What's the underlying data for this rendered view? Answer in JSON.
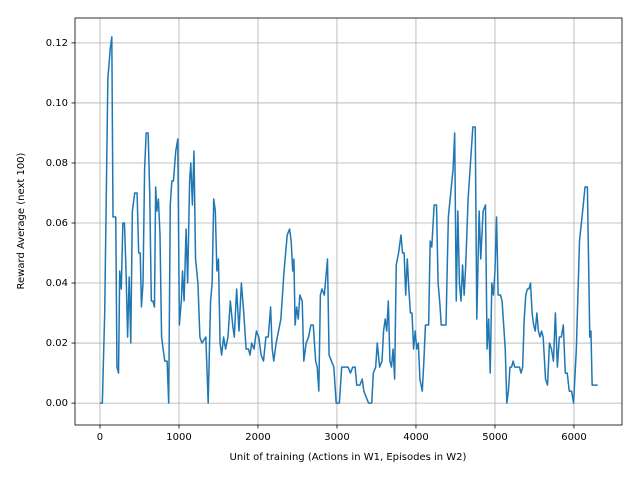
{
  "chart_data": {
    "type": "line",
    "x_label": "Unit of training (Actions in W1, Episodes in W2)",
    "y_label": "Reward Average (next 100)",
    "color": "#1f77b4",
    "grid": true,
    "xlim": [
      -316,
      6608
    ],
    "ylim": [
      -0.0073,
      0.1283
    ],
    "xticks": [
      0,
      1000,
      2000,
      3000,
      4000,
      5000,
      6000
    ],
    "yticks": [
      {
        "value": 0,
        "label": "0.00"
      },
      {
        "value": 0.02,
        "label": "0.02"
      },
      {
        "value": 0.04,
        "label": "0.04"
      },
      {
        "value": 0.06,
        "label": "0.06"
      },
      {
        "value": 0.08,
        "label": "0.08"
      },
      {
        "value": 0.1,
        "label": "0.10"
      },
      {
        "value": 0.12,
        "label": "0.12"
      }
    ],
    "x": [
      0,
      30,
      60,
      100,
      130,
      150,
      165,
      200,
      215,
      235,
      250,
      270,
      290,
      310,
      330,
      350,
      370,
      390,
      410,
      440,
      470,
      490,
      510,
      525,
      545,
      565,
      585,
      610,
      630,
      650,
      670,
      690,
      705,
      720,
      740,
      760,
      780,
      800,
      820,
      850,
      870,
      890,
      910,
      930,
      960,
      985,
      1005,
      1030,
      1045,
      1065,
      1090,
      1110,
      1135,
      1150,
      1170,
      1190,
      1210,
      1240,
      1265,
      1290,
      1340,
      1370,
      1400,
      1420,
      1440,
      1460,
      1480,
      1500,
      1520,
      1540,
      1565,
      1590,
      1620,
      1650,
      1680,
      1700,
      1730,
      1760,
      1790,
      1820,
      1850,
      1880,
      1900,
      1920,
      1950,
      1980,
      2010,
      2040,
      2070,
      2100,
      2130,
      2160,
      2180,
      2200,
      2230,
      2260,
      2290,
      2330,
      2370,
      2400,
      2420,
      2440,
      2455,
      2470,
      2490,
      2510,
      2530,
      2560,
      2580,
      2610,
      2640,
      2670,
      2700,
      2730,
      2750,
      2770,
      2790,
      2810,
      2840,
      2880,
      2900,
      2930,
      2960,
      2990,
      3030,
      3060,
      3100,
      3140,
      3170,
      3200,
      3230,
      3250,
      3290,
      3320,
      3340,
      3370,
      3400,
      3440,
      3460,
      3490,
      3510,
      3540,
      3570,
      3590,
      3610,
      3630,
      3650,
      3670,
      3690,
      3710,
      3730,
      3750,
      3780,
      3810,
      3830,
      3850,
      3870,
      3890,
      3910,
      3930,
      3950,
      3970,
      3990,
      4010,
      4030,
      4050,
      4080,
      4100,
      4120,
      4160,
      4180,
      4200,
      4230,
      4260,
      4280,
      4300,
      4320,
      4350,
      4380,
      4410,
      4440,
      4470,
      4490,
      4510,
      4530,
      4550,
      4570,
      4590,
      4610,
      4630,
      4660,
      4690,
      4720,
      4750,
      4770,
      4800,
      4820,
      4850,
      4880,
      4900,
      4920,
      4940,
      4960,
      4980,
      5000,
      5020,
      5040,
      5070,
      5090,
      5110,
      5130,
      5150,
      5170,
      5190,
      5210,
      5230,
      5250,
      5280,
      5310,
      5330,
      5350,
      5370,
      5390,
      5410,
      5430,
      5450,
      5470,
      5490,
      5510,
      5530,
      5550,
      5570,
      5590,
      5610,
      5640,
      5665,
      5690,
      5715,
      5740,
      5765,
      5790,
      5815,
      5840,
      5865,
      5890,
      5915,
      5940,
      5970,
      5995,
      6030,
      6070,
      6110,
      6140,
      6170,
      6200,
      6215,
      6230,
      6270,
      6300
    ],
    "values": [
      0,
      0,
      0.03,
      0.108,
      0.118,
      0.122,
      0.062,
      0.062,
      0.012,
      0.01,
      0.044,
      0.038,
      0.06,
      0.06,
      0.044,
      0.022,
      0.042,
      0.02,
      0.064,
      0.07,
      0.07,
      0.05,
      0.05,
      0.032,
      0.04,
      0.078,
      0.09,
      0.09,
      0.07,
      0.034,
      0.034,
      0.032,
      0.072,
      0.064,
      0.068,
      0.056,
      0.022,
      0.018,
      0.014,
      0.014,
      0,
      0.066,
      0.074,
      0.074,
      0.084,
      0.088,
      0.026,
      0.034,
      0.044,
      0.034,
      0.058,
      0.04,
      0.074,
      0.08,
      0.066,
      0.084,
      0.048,
      0.04,
      0.022,
      0.02,
      0.022,
      0,
      0.034,
      0.04,
      0.068,
      0.064,
      0.044,
      0.048,
      0.02,
      0.016,
      0.022,
      0.018,
      0.022,
      0.034,
      0.026,
      0.022,
      0.038,
      0.024,
      0.04,
      0.03,
      0.018,
      0.018,
      0.016,
      0.02,
      0.018,
      0.024,
      0.022,
      0.016,
      0.014,
      0.022,
      0.022,
      0.032,
      0.018,
      0.014,
      0.02,
      0.024,
      0.028,
      0.044,
      0.056,
      0.058,
      0.054,
      0.044,
      0.048,
      0.026,
      0.032,
      0.028,
      0.036,
      0.034,
      0.014,
      0.02,
      0.022,
      0.026,
      0.026,
      0.014,
      0.012,
      0.004,
      0.036,
      0.038,
      0.036,
      0.048,
      0.016,
      0.014,
      0.012,
      0,
      0,
      0.012,
      0.012,
      0.012,
      0.01,
      0.012,
      0.012,
      0.006,
      0.006,
      0.008,
      0.004,
      0.002,
      0,
      0,
      0.01,
      0.012,
      0.02,
      0.012,
      0.014,
      0.024,
      0.028,
      0.024,
      0.034,
      0.014,
      0.012,
      0.018,
      0.008,
      0.046,
      0.05,
      0.056,
      0.05,
      0.05,
      0.036,
      0.048,
      0.038,
      0.03,
      0.03,
      0.018,
      0.024,
      0.018,
      0.02,
      0.008,
      0.004,
      0.014,
      0.026,
      0.026,
      0.054,
      0.052,
      0.066,
      0.066,
      0.04,
      0.034,
      0.026,
      0.026,
      0.026,
      0.062,
      0.07,
      0.078,
      0.09,
      0.034,
      0.064,
      0.04,
      0.034,
      0.046,
      0.036,
      0.046,
      0.068,
      0.08,
      0.092,
      0.092,
      0.028,
      0.064,
      0.048,
      0.064,
      0.066,
      0.018,
      0.028,
      0.01,
      0.04,
      0.036,
      0.044,
      0.062,
      0.036,
      0.036,
      0.034,
      0.026,
      0.018,
      0,
      0.004,
      0.012,
      0.012,
      0.014,
      0.012,
      0.012,
      0.012,
      0.01,
      0.012,
      0.028,
      0.036,
      0.038,
      0.038,
      0.04,
      0.03,
      0.026,
      0.024,
      0.03,
      0.024,
      0.022,
      0.024,
      0.022,
      0.008,
      0.006,
      0.02,
      0.018,
      0.014,
      0.03,
      0.012,
      0.022,
      0.022,
      0.026,
      0.01,
      0.01,
      0.004,
      0.004,
      0,
      0.018,
      0.054,
      0.064,
      0.072,
      0.072,
      0.022,
      0.024,
      0.006,
      0.006,
      0.006
    ]
  }
}
